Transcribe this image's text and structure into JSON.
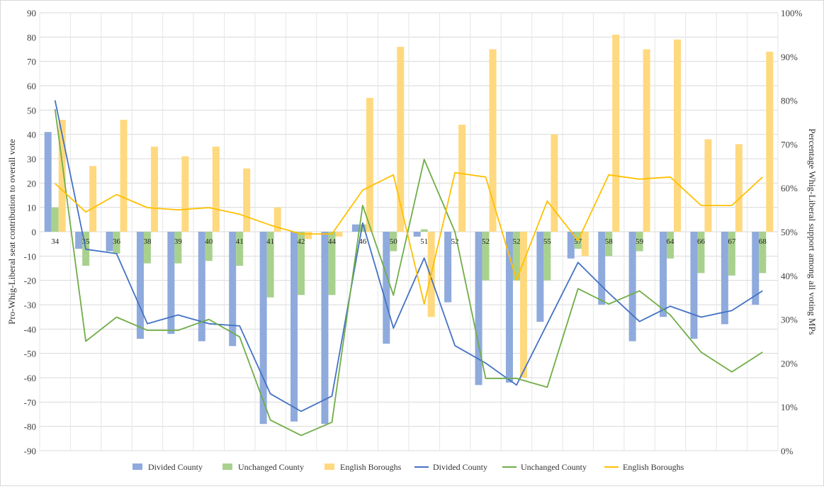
{
  "chart_data": {
    "type": "bar",
    "categories": [
      "34",
      "35",
      "36",
      "38",
      "39",
      "40",
      "41",
      "41",
      "42",
      "44",
      "46",
      "50",
      "51",
      "52",
      "52",
      "52",
      "55",
      "57",
      "58",
      "59",
      "64",
      "66",
      "67",
      "68"
    ],
    "ylabel": "Pro-Whig-Liberal seat contribution to overall vote",
    "y2label": "Percentage Whig-Liberal support among all voting MPs",
    "ylim": [
      -90,
      90
    ],
    "y2lim": [
      0,
      100
    ],
    "yticks": [
      "90",
      "80",
      "70",
      "60",
      "50",
      "40",
      "30",
      "20",
      "10",
      "0",
      "-10",
      "-20",
      "-30",
      "-40",
      "-50",
      "-60",
      "-70",
      "-80",
      "-90"
    ],
    "y2ticks": [
      "100%",
      "90%",
      "80%",
      "70%",
      "60%",
      "50%",
      "40%",
      "30%",
      "20%",
      "10%",
      "0%"
    ],
    "bar_series": [
      {
        "name": "Divided County",
        "color": "#8faadc",
        "values": [
          41,
          -7,
          -8,
          -44,
          -42,
          -45,
          -47,
          -79,
          -78,
          -79,
          3,
          -46,
          -2,
          -29,
          -63,
          -62,
          -37,
          -11,
          -30,
          -45,
          -35,
          -44,
          -38,
          -30
        ]
      },
      {
        "name": "Unchanged County",
        "color": "#a9d18e",
        "values": [
          10,
          -14,
          -9,
          -13,
          -13,
          -12,
          -14,
          -27,
          -26,
          -26,
          3,
          -8,
          1,
          0,
          -20,
          -20,
          -20,
          -7,
          -10,
          -8,
          -11,
          -17,
          -18,
          -17
        ]
      },
      {
        "name": "English Boroughs",
        "color": "#ffd97f",
        "values": [
          46,
          27,
          46,
          35,
          31,
          35,
          26,
          10,
          -3,
          -2,
          55,
          76,
          -35,
          44,
          75,
          -60,
          40,
          -10,
          81,
          75,
          79,
          38,
          36,
          74
        ]
      }
    ],
    "line_series": [
      {
        "name": "Divided County",
        "color": "#4472c4",
        "values": [
          80,
          46,
          45,
          29,
          31,
          29,
          28.5,
          13,
          9,
          12.5,
          52,
          28,
          44,
          24,
          20,
          15,
          29,
          43,
          36,
          29.5,
          33,
          30.5,
          32,
          36.5
        ]
      },
      {
        "name": "Unchanged County",
        "color": "#70ad47",
        "values": [
          78,
          25,
          30.5,
          27.5,
          27.5,
          30,
          26,
          7,
          3.5,
          6.5,
          56,
          35.5,
          66.5,
          50,
          16.5,
          16.5,
          14.5,
          37,
          33.5,
          36.5,
          31,
          22.5,
          18,
          22.5
        ]
      },
      {
        "name": "English Boroughs",
        "color": "#ffc000",
        "values": [
          61,
          54.5,
          58.5,
          55.5,
          55,
          55.5,
          54,
          51.5,
          49.5,
          49.5,
          59.5,
          63,
          33.5,
          63.5,
          62.5,
          39,
          57,
          48,
          63,
          62,
          62.5,
          56,
          56,
          62.5
        ]
      }
    ],
    "legend": {
      "position": "bottom",
      "items": [
        {
          "label": "Divided County",
          "kind": "bar",
          "color": "#8faadc"
        },
        {
          "label": "Unchanged County",
          "kind": "bar",
          "color": "#a9d18e"
        },
        {
          "label": "English Boroughs",
          "kind": "bar",
          "color": "#ffd97f"
        },
        {
          "label": "Divided County",
          "kind": "line",
          "color": "#4472c4"
        },
        {
          "label": "Unchanged County",
          "kind": "line",
          "color": "#70ad47"
        },
        {
          "label": "English Boroughs",
          "kind": "line",
          "color": "#ffc000"
        }
      ]
    },
    "grid": true
  }
}
